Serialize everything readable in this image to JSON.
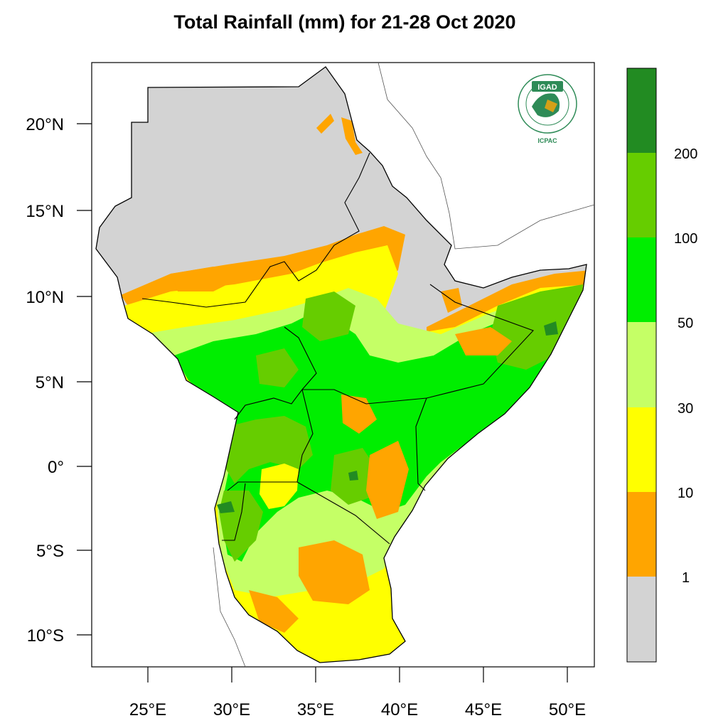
{
  "title": "Total Rainfall (mm) for 21-28 Oct 2020",
  "axes": {
    "lat_labels": [
      "20°N",
      "15°N",
      "10°N",
      "5°N",
      "0°",
      "5°S",
      "10°S"
    ],
    "lon_labels": [
      "25°E",
      "30°E",
      "35°E",
      "40°E",
      "45°E",
      "50°E"
    ]
  },
  "colorbar": {
    "labels": [
      "200",
      "100",
      "50",
      "30",
      "10",
      "1"
    ],
    "colors": [
      "#228B22",
      "#66CD00",
      "#00EE00",
      "#C5FF66",
      "#FFFF00",
      "#FFA500",
      "#D3D3D3"
    ]
  },
  "logo": {
    "acronym": "IGAD",
    "ring_text": "INTERGOVERNMENTAL AUTHORITY ON DEVELOPMENT",
    "org": "ICPAC"
  },
  "icons": {
    "logo": "igad-emblem-icon"
  }
}
